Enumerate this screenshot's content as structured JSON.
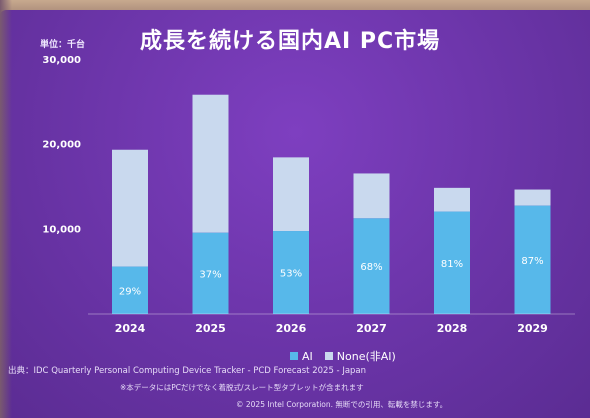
{
  "title": "成長を続ける国内AI PC市場",
  "unit_label": "単位：千台",
  "source": "出典：IDC Quarterly Personal Computing Device Tracker - PCD Forecast 2025 - Japan",
  "note": "※本データにはPCだけでなく着脱式/スレート型タブレットが含まれます",
  "copyright": "© 2025 Intel Corporation. 無断での引用、転載を禁じます。",
  "colors": {
    "ai": "#57b8ea",
    "none": "#c9d9ee"
  },
  "chart_data": {
    "type": "bar",
    "stacked": true,
    "categories": [
      "2024",
      "2025",
      "2026",
      "2027",
      "2028",
      "2029"
    ],
    "series": [
      {
        "name": "AI",
        "values": [
          5600,
          9600,
          9800,
          11300,
          12100,
          12800
        ]
      },
      {
        "name": "None(非AI)",
        "values": [
          13800,
          16300,
          8700,
          5300,
          2800,
          1900
        ]
      }
    ],
    "data_labels": [
      "29%",
      "37%",
      "53%",
      "68%",
      "81%",
      "87%"
    ],
    "yticks": [
      "10,000",
      "20,000",
      "30,000"
    ],
    "ytick_values": [
      10000,
      20000,
      30000
    ],
    "ylim": [
      0,
      30000
    ],
    "legend": [
      "AI",
      "None(非AI)"
    ],
    "legend_position": "bottom"
  }
}
